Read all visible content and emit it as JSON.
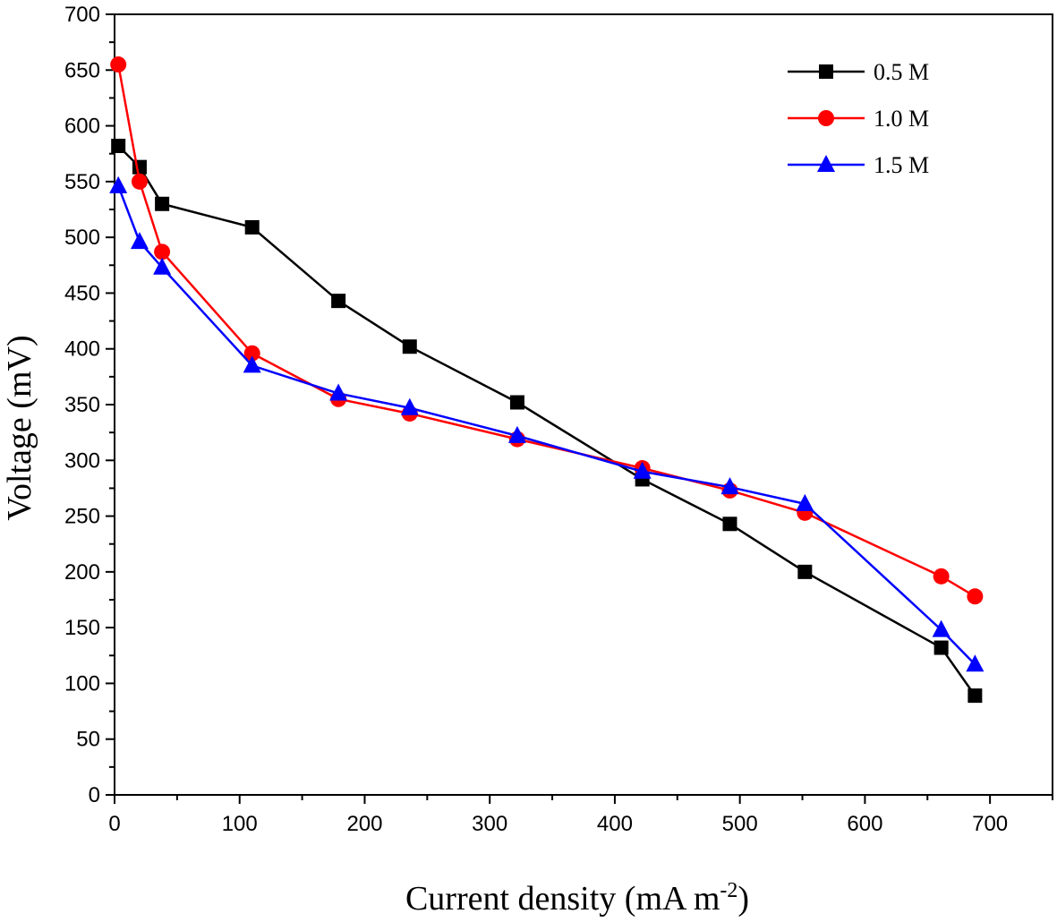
{
  "chart_data": {
    "type": "line",
    "title": "",
    "xlabel": "Current density (mA m",
    "xlabel_superscript": "-2",
    "xlabel_suffix": ")",
    "ylabel": "Voltage (mV)",
    "xlim": [
      0,
      750
    ],
    "ylim": [
      0,
      700
    ],
    "xticks": [
      0,
      100,
      200,
      300,
      400,
      500,
      600,
      700
    ],
    "yticks": [
      0,
      50,
      100,
      150,
      200,
      250,
      300,
      350,
      400,
      450,
      500,
      550,
      600,
      650,
      700
    ],
    "legend_position": "top-right",
    "series": [
      {
        "name": "0.5 M",
        "color": "#000000",
        "marker": "square",
        "x": [
          3,
          20,
          38,
          110,
          179,
          236,
          322,
          422,
          492,
          552,
          661,
          688
        ],
        "y": [
          582,
          563,
          530,
          509,
          443,
          402,
          352,
          283,
          243,
          200,
          132,
          89
        ]
      },
      {
        "name": "1.0 M",
        "color": "#ff0000",
        "marker": "circle",
        "x": [
          3,
          20,
          38,
          110,
          179,
          236,
          322,
          422,
          492,
          552,
          661,
          688
        ],
        "y": [
          655,
          550,
          487,
          396,
          355,
          342,
          319,
          293,
          273,
          253,
          196,
          178
        ]
      },
      {
        "name": "1.5 M",
        "color": "#0000ff",
        "marker": "triangle",
        "x": [
          3,
          20,
          38,
          110,
          179,
          236,
          322,
          422,
          492,
          552,
          661,
          688
        ],
        "y": [
          546,
          496,
          473,
          385,
          360,
          347,
          322,
          290,
          276,
          261,
          148,
          117
        ]
      }
    ]
  }
}
